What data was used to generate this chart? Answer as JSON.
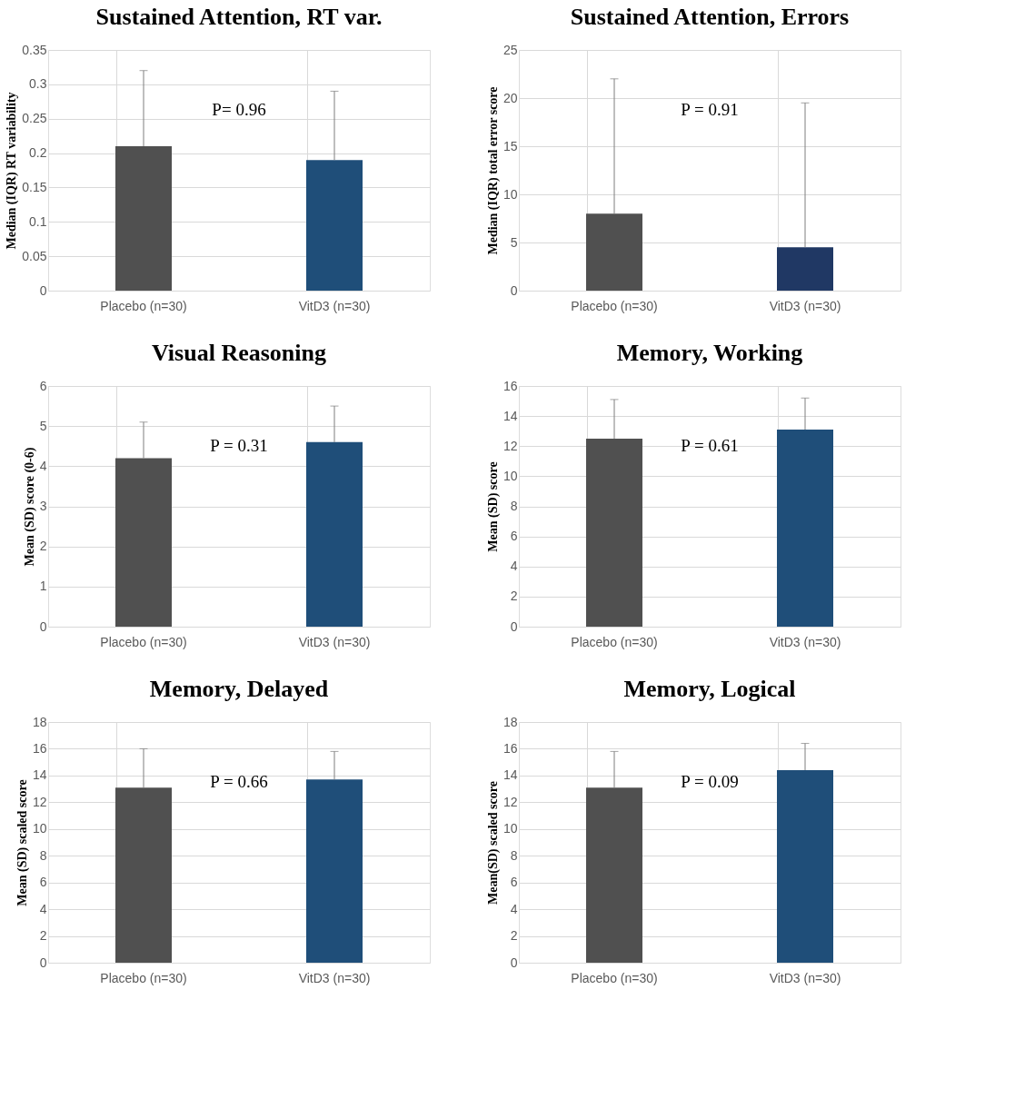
{
  "chart_data": [
    {
      "type": "bar",
      "title": "Sustained Attention, RT var.",
      "ylabel": "Median (IQR) RT variability",
      "categories": [
        "Placebo (n=30)",
        "VitD3 (n=30)"
      ],
      "values": [
        0.21,
        0.19
      ],
      "colors": [
        "#505050",
        "#1f4e79"
      ],
      "errors": [
        [
          0.21,
          0.32
        ],
        [
          0.19,
          0.29
        ]
      ],
      "ylim": [
        0,
        0.35
      ],
      "yticks": [
        0,
        0.05,
        0.1,
        0.15,
        0.2,
        0.25,
        0.3,
        0.35
      ],
      "grid": true,
      "annotations": [
        "P= 0.96"
      ]
    },
    {
      "type": "bar",
      "title": "Sustained Attention, Errors",
      "ylabel": "Median (IQR) total error score",
      "categories": [
        "Placebo (n=30)",
        "VitD3 (n=30)"
      ],
      "values": [
        8,
        4.5
      ],
      "colors": [
        "#505050",
        "#203864"
      ],
      "errors": [
        [
          8,
          22
        ],
        [
          4.5,
          19.5
        ]
      ],
      "ylim": [
        0,
        25
      ],
      "yticks": [
        0,
        5,
        10,
        15,
        20,
        25
      ],
      "grid": true,
      "annotations": [
        "P = 0.91"
      ]
    },
    {
      "type": "bar",
      "title": "Visual Reasoning",
      "ylabel": "Mean (SD) score (0-6)",
      "categories": [
        "Placebo (n=30)",
        "VitD3 (n=30)"
      ],
      "values": [
        4.2,
        4.6
      ],
      "colors": [
        "#505050",
        "#1f4e79"
      ],
      "errors": [
        [
          4.2,
          5.1
        ],
        [
          4.6,
          5.5
        ]
      ],
      "ylim": [
        0,
        6
      ],
      "yticks": [
        0,
        1,
        2,
        3,
        4,
        5,
        6
      ],
      "grid": true,
      "annotations": [
        "P = 0.31"
      ]
    },
    {
      "type": "bar",
      "title": "Memory, Working",
      "ylabel": "Mean (SD) score",
      "categories": [
        "Placebo (n=30)",
        "VitD3 (n=30)"
      ],
      "values": [
        12.5,
        13.1
      ],
      "colors": [
        "#505050",
        "#1f4e79"
      ],
      "errors": [
        [
          12.5,
          15.1
        ],
        [
          13.1,
          15.2
        ]
      ],
      "ylim": [
        0,
        16
      ],
      "yticks": [
        0,
        2,
        4,
        6,
        8,
        10,
        12,
        14,
        16
      ],
      "grid": true,
      "annotations": [
        "P = 0.61"
      ]
    },
    {
      "type": "bar",
      "title": "Memory, Delayed",
      "ylabel": "Mean (SD) scaled score",
      "categories": [
        "Placebo (n=30)",
        "VitD3 (n=30)"
      ],
      "values": [
        13.1,
        13.7
      ],
      "colors": [
        "#505050",
        "#1f4e79"
      ],
      "errors": [
        [
          13.1,
          16.0
        ],
        [
          13.7,
          15.8
        ]
      ],
      "ylim": [
        0,
        18
      ],
      "yticks": [
        0,
        2,
        4,
        6,
        8,
        10,
        12,
        14,
        16,
        18
      ],
      "grid": true,
      "annotations": [
        "P = 0.66"
      ]
    },
    {
      "type": "bar",
      "title": "Memory, Logical",
      "ylabel": "Mean(SD) scaled score",
      "categories": [
        "Placebo (n=30)",
        "VitD3 (n=30)"
      ],
      "values": [
        13.1,
        14.4
      ],
      "colors": [
        "#505050",
        "#1f4e79"
      ],
      "errors": [
        [
          13.1,
          15.8
        ],
        [
          14.4,
          16.4
        ]
      ],
      "ylim": [
        0,
        18
      ],
      "yticks": [
        0,
        2,
        4,
        6,
        8,
        10,
        12,
        14,
        16,
        18
      ],
      "grid": true,
      "annotations": [
        "P = 0.09"
      ]
    }
  ]
}
